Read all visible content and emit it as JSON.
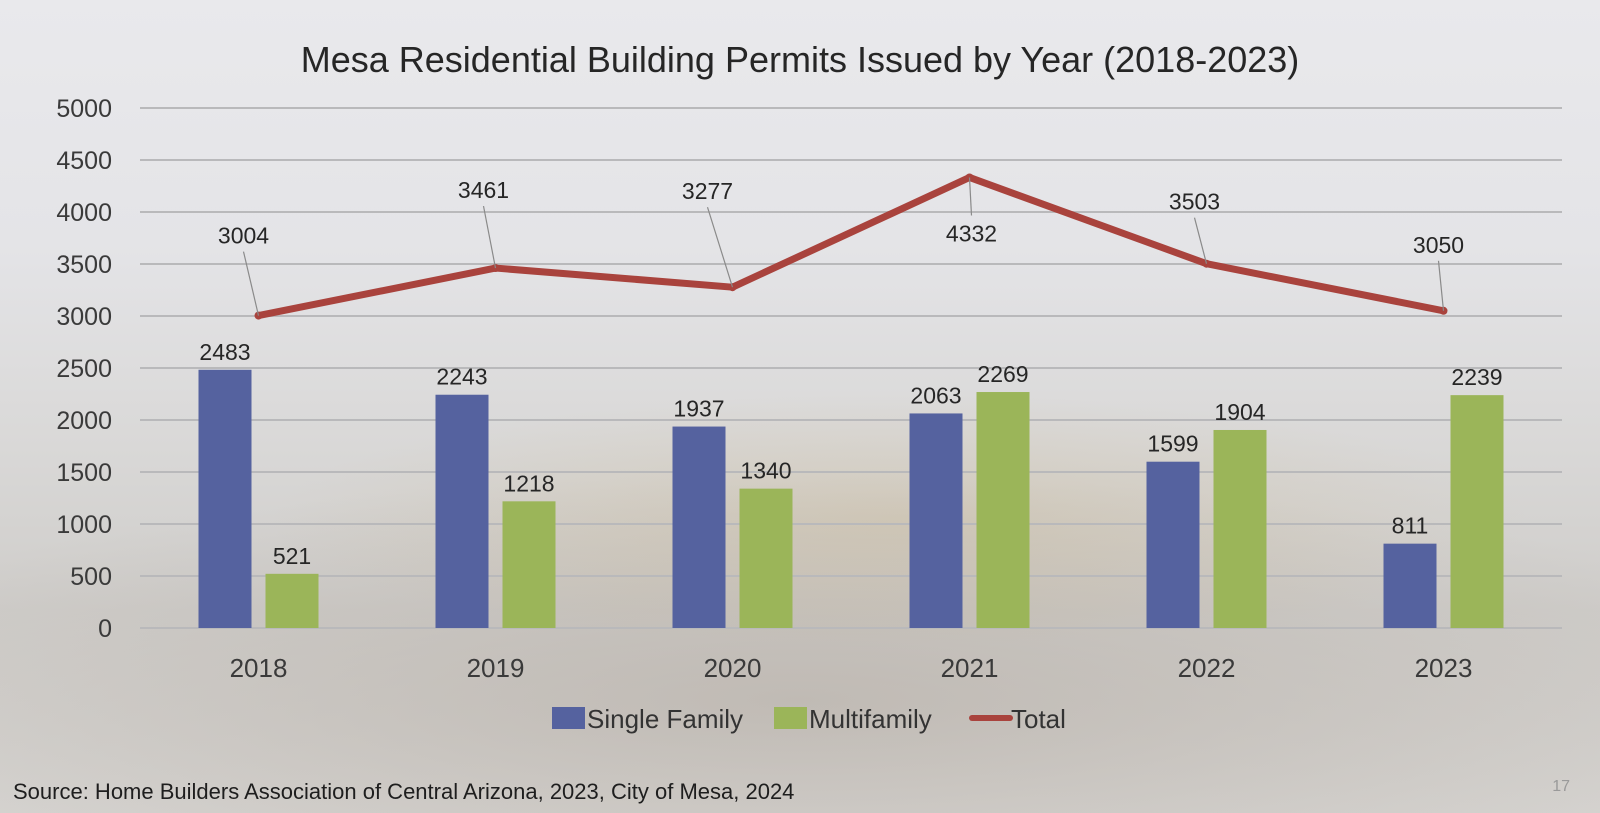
{
  "chart_data": {
    "type": "bar",
    "title": "Mesa Residential Building Permits Issued by Year (2018-2023)",
    "categories": [
      "2018",
      "2019",
      "2020",
      "2021",
      "2022",
      "2023"
    ],
    "series": [
      {
        "name": "Single Family",
        "kind": "bar",
        "color": "#55629f",
        "values": [
          2483,
          2243,
          1937,
          2063,
          1599,
          811
        ]
      },
      {
        "name": "Multifamily",
        "kind": "bar",
        "color": "#9bb559",
        "values": [
          521,
          1218,
          1340,
          2269,
          1904,
          2239
        ]
      },
      {
        "name": "Total",
        "kind": "line",
        "color": "#a9433d",
        "values": [
          3004,
          3461,
          3277,
          4332,
          3503,
          3050
        ]
      }
    ],
    "y_ticks": [
      "0",
      "500",
      "1000",
      "1500",
      "2000",
      "2500",
      "3000",
      "3500",
      "4000",
      "4500",
      "5000"
    ],
    "ylim": [
      0,
      5000
    ],
    "xlabel": "",
    "ylabel": "",
    "grid": true,
    "legend_position": "bottom-center"
  },
  "footer": {
    "source": "Source: Home Builders Association of Central Arizona, 2023, City of Mesa, 2024",
    "page_number": "17"
  }
}
